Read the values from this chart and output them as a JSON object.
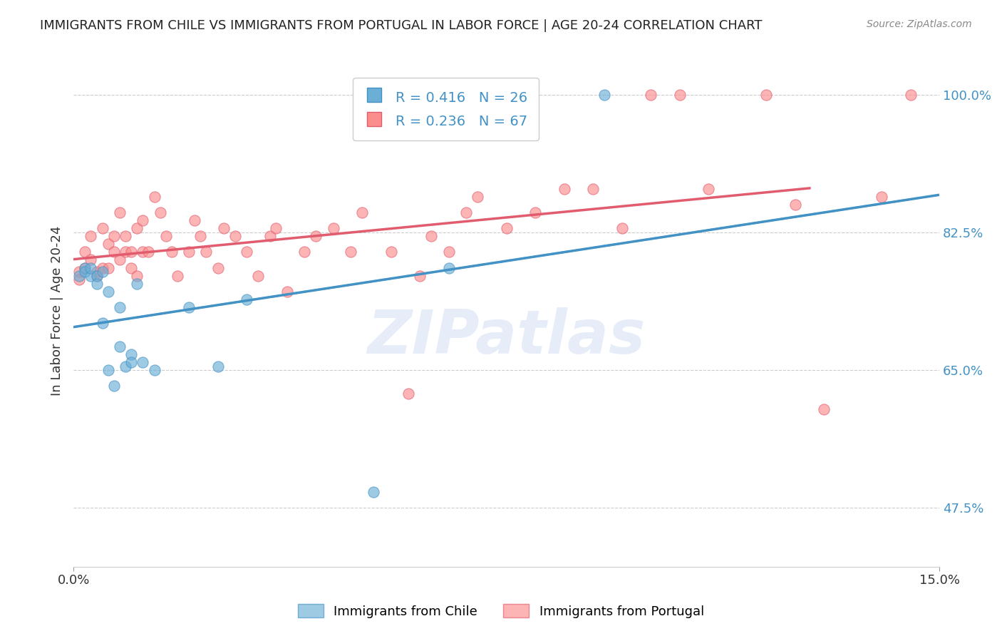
{
  "title": "IMMIGRANTS FROM CHILE VS IMMIGRANTS FROM PORTUGAL IN LABOR FORCE | AGE 20-24 CORRELATION CHART",
  "source": "Source: ZipAtlas.com",
  "xlabel_chile": "Immigrants from Chile",
  "xlabel_portugal": "Immigrants from Portugal",
  "ylabel": "In Labor Force | Age 20-24",
  "legend_chile": "R = 0.416   N = 26",
  "legend_portugal": "R = 0.236   N = 67",
  "r_chile": 0.416,
  "n_chile": 26,
  "r_portugal": 0.236,
  "n_portugal": 67,
  "xlim": [
    0.0,
    0.15
  ],
  "ylim": [
    0.4,
    1.05
  ],
  "yticks": [
    0.475,
    0.65,
    0.825,
    1.0
  ],
  "ytick_labels": [
    "47.5%",
    "65.0%",
    "82.5%",
    "100.0%"
  ],
  "xticks": [
    0.0,
    0.15
  ],
  "xtick_labels": [
    "0.0%",
    "15.0%"
  ],
  "color_chile": "#6baed6",
  "color_portugal": "#fc8d8d",
  "color_line_chile": "#4292c6",
  "color_line_portugal": "#e05c6e",
  "color_axis_labels": "#4292c6",
  "watermark": "ZIPatlas",
  "chile_scatter_x": [
    0.001,
    0.002,
    0.002,
    0.003,
    0.003,
    0.004,
    0.004,
    0.005,
    0.005,
    0.006,
    0.006,
    0.007,
    0.008,
    0.008,
    0.009,
    0.01,
    0.01,
    0.011,
    0.012,
    0.014,
    0.02,
    0.025,
    0.03,
    0.052,
    0.065,
    0.092
  ],
  "chile_scatter_y": [
    0.77,
    0.78,
    0.775,
    0.77,
    0.78,
    0.77,
    0.76,
    0.775,
    0.71,
    0.75,
    0.65,
    0.63,
    0.73,
    0.68,
    0.655,
    0.67,
    0.66,
    0.76,
    0.66,
    0.65,
    0.73,
    0.655,
    0.74,
    0.495,
    0.78,
    1.0
  ],
  "portugal_scatter_x": [
    0.001,
    0.001,
    0.002,
    0.002,
    0.003,
    0.003,
    0.004,
    0.004,
    0.005,
    0.005,
    0.006,
    0.006,
    0.007,
    0.007,
    0.008,
    0.008,
    0.009,
    0.009,
    0.01,
    0.01,
    0.011,
    0.011,
    0.012,
    0.012,
    0.013,
    0.014,
    0.015,
    0.016,
    0.017,
    0.018,
    0.02,
    0.021,
    0.022,
    0.023,
    0.025,
    0.026,
    0.028,
    0.03,
    0.032,
    0.034,
    0.035,
    0.037,
    0.04,
    0.042,
    0.045,
    0.048,
    0.05,
    0.055,
    0.058,
    0.06,
    0.062,
    0.065,
    0.068,
    0.07,
    0.075,
    0.08,
    0.085,
    0.09,
    0.095,
    0.1,
    0.105,
    0.11,
    0.12,
    0.125,
    0.13,
    0.14,
    0.145
  ],
  "portugal_scatter_y": [
    0.775,
    0.765,
    0.8,
    0.78,
    0.82,
    0.79,
    0.775,
    0.77,
    0.78,
    0.83,
    0.78,
    0.81,
    0.8,
    0.82,
    0.85,
    0.79,
    0.8,
    0.82,
    0.78,
    0.8,
    0.83,
    0.77,
    0.8,
    0.84,
    0.8,
    0.87,
    0.85,
    0.82,
    0.8,
    0.77,
    0.8,
    0.84,
    0.82,
    0.8,
    0.78,
    0.83,
    0.82,
    0.8,
    0.77,
    0.82,
    0.83,
    0.75,
    0.8,
    0.82,
    0.83,
    0.8,
    0.85,
    0.8,
    0.62,
    0.77,
    0.82,
    0.8,
    0.85,
    0.87,
    0.83,
    0.85,
    0.88,
    0.88,
    0.83,
    1.0,
    1.0,
    0.88,
    1.0,
    0.86,
    0.6,
    0.87,
    1.0
  ]
}
